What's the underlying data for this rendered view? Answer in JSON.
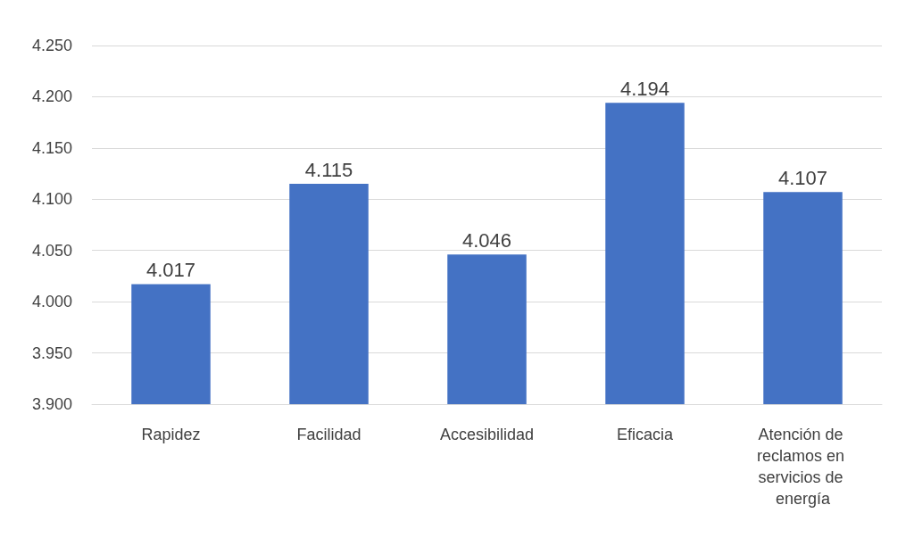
{
  "chart_data": {
    "type": "bar",
    "categories": [
      "Rapidez",
      "Facilidad",
      "Accesibilidad",
      "Eficacia",
      "Atención de reclamos en servicios de energía"
    ],
    "values": [
      4.017,
      4.115,
      4.046,
      4.194,
      4.107
    ],
    "color": "#4472c4",
    "ylim": [
      3.9,
      4.25
    ],
    "yticks": [
      {
        "value": 3.9,
        "label": "3.900"
      },
      {
        "value": 3.95,
        "label": "3.950"
      },
      {
        "value": 4.0,
        "label": "4.000"
      },
      {
        "value": 4.05,
        "label": "4.050"
      },
      {
        "value": 4.1,
        "label": "4.100"
      },
      {
        "value": 4.15,
        "label": "4.150"
      },
      {
        "value": 4.2,
        "label": "4.200"
      },
      {
        "value": 4.25,
        "label": "4.250"
      }
    ],
    "grid": "y",
    "data_labels": true
  }
}
